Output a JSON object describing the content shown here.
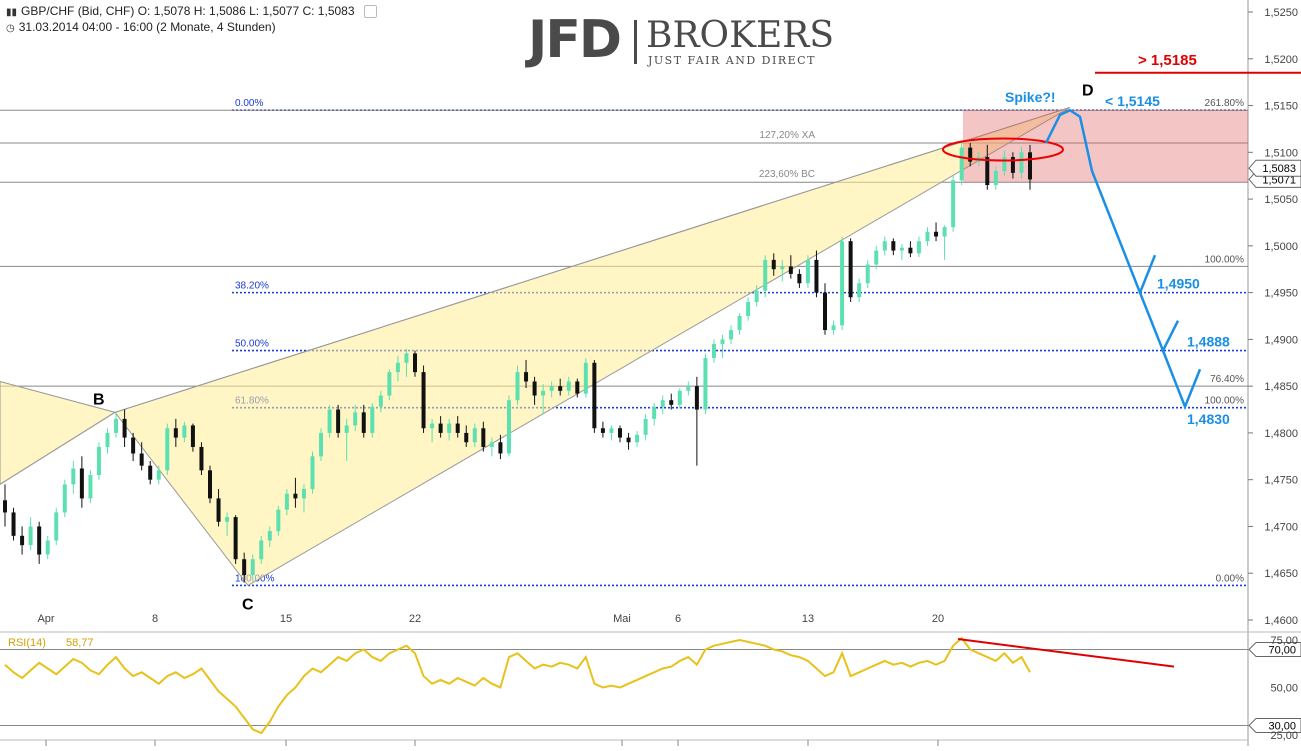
{
  "header": {
    "line1": "GBP/CHF (Bid, CHF)  O: 1,5078  H: 1,5086  L: 1,5077  C: 1,5083",
    "line2": "31.03.2014 04:00 - 16:00 (2 Monate, 4 Stunden)"
  },
  "logo": {
    "main": "JFD",
    "brand": "BROKERS",
    "tagline": "JUST FAIR AND DIRECT"
  },
  "chart_data": [
    {
      "type": "candlestick",
      "title": "GBP/CHF",
      "ylim": [
        1.46,
        1.525
      ],
      "y_ticks": [
        "1,5250",
        "1,5200",
        "1,5150",
        "1,5100",
        "1,5050",
        "1,5000",
        "1,4950",
        "1,4900",
        "1,4850",
        "1,4800",
        "1,4750",
        "1,4700",
        "1,4650",
        "1,4600"
      ],
      "y_tick_values": [
        1.525,
        1.52,
        1.515,
        1.51,
        1.505,
        1.5,
        1.495,
        1.49,
        1.485,
        1.48,
        1.475,
        1.47,
        1.465,
        1.46
      ],
      "x_ticks": [
        "Apr",
        "8",
        "15",
        "22",
        "Mai",
        "6",
        "13",
        "20"
      ],
      "current_price": "1,5083",
      "price_label_2": "1,5071",
      "colors": {
        "up": "#5ce0b0",
        "down": "#111111",
        "fib": "#1a3bd4",
        "target": "#1a8fe6",
        "alert": "#e00000"
      },
      "pattern_points": {
        "B": "B",
        "C": "C",
        "D": "D"
      },
      "fib_left": [
        {
          "label": "0.00%",
          "y": 1.5145
        },
        {
          "label": "38.20%",
          "y": 1.495
        },
        {
          "label": "50.00%",
          "y": 1.4888
        },
        {
          "label": "61.80%",
          "y": 1.4827
        },
        {
          "label": "100.00%",
          "y": 1.4637
        }
      ],
      "fib_right": [
        {
          "label": "261.80%",
          "y": 1.5145
        },
        {
          "label": "100.00%",
          "y": 1.4978
        },
        {
          "label": "76.40%",
          "y": 1.485
        },
        {
          "label": "100.00%",
          "y": 1.4827
        },
        {
          "label": "0.00%",
          "y": 1.4637
        }
      ],
      "grey_levels": [
        {
          "label": "127,20% XA",
          "y": 1.511
        },
        {
          "label": "223,60% BC",
          "y": 1.5068
        },
        {
          "label": "",
          "y": 1.4978
        },
        {
          "label": "",
          "y": 1.485
        }
      ],
      "annotations": {
        "spike": "Spike?!",
        "upper_target": "> 1,5185",
        "d_level": "< 1,5145",
        "t1": "1,4950",
        "t2": "1,4888",
        "t3": "1,4830"
      },
      "candles": [
        [
          1.4728,
          1.4745,
          1.47,
          1.4715
        ],
        [
          1.4715,
          1.472,
          1.4685,
          1.469
        ],
        [
          1.469,
          1.47,
          1.467,
          1.468
        ],
        [
          1.468,
          1.471,
          1.4675,
          1.47
        ],
        [
          1.47,
          1.4705,
          1.466,
          1.467
        ],
        [
          1.467,
          1.469,
          1.4665,
          1.4685
        ],
        [
          1.4685,
          1.472,
          1.468,
          1.4715
        ],
        [
          1.4715,
          1.475,
          1.471,
          1.4745
        ],
        [
          1.4745,
          1.477,
          1.4735,
          1.4762
        ],
        [
          1.4762,
          1.4775,
          1.472,
          1.473
        ],
        [
          1.473,
          1.476,
          1.4725,
          1.4755
        ],
        [
          1.4755,
          1.479,
          1.475,
          1.4785
        ],
        [
          1.4785,
          1.4805,
          1.4778,
          1.48
        ],
        [
          1.48,
          1.4822,
          1.4795,
          1.4815
        ],
        [
          1.4815,
          1.4825,
          1.4785,
          1.4795
        ],
        [
          1.4795,
          1.48,
          1.477,
          1.4778
        ],
        [
          1.4778,
          1.479,
          1.476,
          1.4765
        ],
        [
          1.4765,
          1.477,
          1.4745,
          1.475
        ],
        [
          1.475,
          1.4765,
          1.4745,
          1.476
        ],
        [
          1.476,
          1.481,
          1.4755,
          1.4805
        ],
        [
          1.4805,
          1.4815,
          1.4785,
          1.4795
        ],
        [
          1.4795,
          1.4812,
          1.479,
          1.4808
        ],
        [
          1.4808,
          1.481,
          1.478,
          1.4785
        ],
        [
          1.4785,
          1.479,
          1.4755,
          1.476
        ],
        [
          1.476,
          1.4765,
          1.4725,
          1.473
        ],
        [
          1.473,
          1.474,
          1.47,
          1.4705
        ],
        [
          1.4705,
          1.4715,
          1.469,
          1.471
        ],
        [
          1.471,
          1.4712,
          1.466,
          1.4665
        ],
        [
          1.4665,
          1.4672,
          1.464,
          1.4648
        ],
        [
          1.4648,
          1.467,
          1.4642,
          1.4665
        ],
        [
          1.4665,
          1.469,
          1.466,
          1.4685
        ],
        [
          1.4685,
          1.47,
          1.4678,
          1.4695
        ],
        [
          1.4695,
          1.4722,
          1.469,
          1.4718
        ],
        [
          1.4718,
          1.474,
          1.4712,
          1.4735
        ],
        [
          1.4735,
          1.4752,
          1.472,
          1.473
        ],
        [
          1.473,
          1.4745,
          1.4715,
          1.474
        ],
        [
          1.474,
          1.478,
          1.4735,
          1.4775
        ],
        [
          1.4775,
          1.4805,
          1.477,
          1.48
        ],
        [
          1.48,
          1.483,
          1.4795,
          1.4825
        ],
        [
          1.4825,
          1.483,
          1.4795,
          1.48
        ],
        [
          1.48,
          1.4815,
          1.477,
          1.4808
        ],
        [
          1.4808,
          1.483,
          1.4802,
          1.4822
        ],
        [
          1.4822,
          1.483,
          1.4795,
          1.48
        ],
        [
          1.48,
          1.4832,
          1.4795,
          1.4828
        ],
        [
          1.4828,
          1.4845,
          1.4822,
          1.484
        ],
        [
          1.484,
          1.4868,
          1.4835,
          1.4865
        ],
        [
          1.4865,
          1.4882,
          1.4855,
          1.4875
        ],
        [
          1.4875,
          1.489,
          1.486,
          1.4885
        ],
        [
          1.4885,
          1.4888,
          1.486,
          1.4865
        ],
        [
          1.4865,
          1.4872,
          1.48,
          1.4805
        ],
        [
          1.4805,
          1.4815,
          1.479,
          1.481
        ],
        [
          1.481,
          1.4818,
          1.4795,
          1.48
        ],
        [
          1.48,
          1.4815,
          1.4792,
          1.481
        ],
        [
          1.481,
          1.4818,
          1.4795,
          1.48
        ],
        [
          1.48,
          1.4808,
          1.4785,
          1.479
        ],
        [
          1.479,
          1.481,
          1.4785,
          1.4805
        ],
        [
          1.4805,
          1.4812,
          1.478,
          1.4785
        ],
        [
          1.4785,
          1.4795,
          1.4775,
          1.479
        ],
        [
          1.479,
          1.4798,
          1.4772,
          1.4778
        ],
        [
          1.4778,
          1.484,
          1.4775,
          1.4835
        ],
        [
          1.4835,
          1.4872,
          1.483,
          1.4865
        ],
        [
          1.4865,
          1.4878,
          1.4848,
          1.4855
        ],
        [
          1.4855,
          1.486,
          1.483,
          1.484
        ],
        [
          1.484,
          1.4852,
          1.482,
          1.4845
        ],
        [
          1.4845,
          1.4855,
          1.4838,
          1.485
        ],
        [
          1.485,
          1.4858,
          1.484,
          1.4845
        ],
        [
          1.4845,
          1.486,
          1.484,
          1.4855
        ],
        [
          1.4855,
          1.4858,
          1.4838,
          1.4842
        ],
        [
          1.4842,
          1.488,
          1.4838,
          1.4875
        ],
        [
          1.4875,
          1.4878,
          1.48,
          1.4805
        ],
        [
          1.4805,
          1.4812,
          1.4795,
          1.48
        ],
        [
          1.48,
          1.4808,
          1.4792,
          1.4805
        ],
        [
          1.4805,
          1.4808,
          1.479,
          1.4795
        ],
        [
          1.4795,
          1.48,
          1.4782,
          1.479
        ],
        [
          1.479,
          1.4802,
          1.4785,
          1.4798
        ],
        [
          1.4798,
          1.482,
          1.4792,
          1.4815
        ],
        [
          1.4815,
          1.4832,
          1.4808,
          1.4828
        ],
        [
          1.4828,
          1.484,
          1.482,
          1.4835
        ],
        [
          1.4835,
          1.4842,
          1.4825,
          1.483
        ],
        [
          1.483,
          1.4848,
          1.4826,
          1.4845
        ],
        [
          1.4845,
          1.4855,
          1.484,
          1.485
        ],
        [
          1.485,
          1.486,
          1.4765,
          1.4825
        ],
        [
          1.4825,
          1.4885,
          1.482,
          1.488
        ],
        [
          1.488,
          1.49,
          1.4875,
          1.4895
        ],
        [
          1.4895,
          1.4905,
          1.488,
          1.49
        ],
        [
          1.49,
          1.4915,
          1.4895,
          1.491
        ],
        [
          1.491,
          1.4928,
          1.4905,
          1.4925
        ],
        [
          1.4925,
          1.4945,
          1.492,
          1.494
        ],
        [
          1.494,
          1.4958,
          1.4935,
          1.4952
        ],
        [
          1.4952,
          1.499,
          1.4945,
          1.4985
        ],
        [
          1.4985,
          1.4992,
          1.4968,
          1.4975
        ],
        [
          1.4975,
          1.4985,
          1.4962,
          1.4978
        ],
        [
          1.4978,
          1.499,
          1.4965,
          1.497
        ],
        [
          1.497,
          1.4975,
          1.4955,
          1.496
        ],
        [
          1.496,
          1.499,
          1.4955,
          1.4985
        ],
        [
          1.4985,
          1.4995,
          1.4945,
          1.495
        ],
        [
          1.495,
          1.496,
          1.4905,
          1.491
        ],
        [
          1.491,
          1.492,
          1.4905,
          1.4915
        ],
        [
          1.4915,
          1.501,
          1.491,
          1.5005
        ],
        [
          1.5005,
          1.5008,
          1.494,
          1.4945
        ],
        [
          1.4945,
          1.4965,
          1.494,
          1.496
        ],
        [
          1.496,
          1.4985,
          1.4955,
          1.498
        ],
        [
          1.498,
          1.5,
          1.4975,
          1.4995
        ],
        [
          1.4995,
          1.501,
          1.499,
          1.5005
        ],
        [
          1.5005,
          1.5008,
          1.499,
          1.4995
        ],
        [
          1.4995,
          1.5002,
          1.4985,
          1.4998
        ],
        [
          1.4998,
          1.5005,
          1.4988,
          1.4992
        ],
        [
          1.4992,
          1.501,
          1.4988,
          1.5005
        ],
        [
          1.5005,
          1.502,
          1.5,
          1.5015
        ],
        [
          1.5015,
          1.5025,
          1.5005,
          1.501
        ],
        [
          1.501,
          1.5022,
          1.4985,
          1.502
        ],
        [
          1.502,
          1.5075,
          1.5015,
          1.507
        ],
        [
          1.507,
          1.5112,
          1.5065,
          1.5105
        ],
        [
          1.5105,
          1.511,
          1.5085,
          1.509
        ],
        [
          1.509,
          1.51,
          1.5085,
          1.5095
        ],
        [
          1.5095,
          1.5108,
          1.506,
          1.5065
        ],
        [
          1.5065,
          1.5085,
          1.506,
          1.508
        ],
        [
          1.508,
          1.5102,
          1.5075,
          1.5095
        ],
        [
          1.5095,
          1.51,
          1.5072,
          1.5078
        ],
        [
          1.5078,
          1.5106,
          1.5072,
          1.51
        ],
        [
          1.51,
          1.5108,
          1.506,
          1.5071
        ]
      ]
    },
    {
      "type": "line",
      "title": "RSI(14)",
      "value_label": "58,77",
      "ylim": [
        25,
        75
      ],
      "y_ticks": [
        "75,00",
        "50,00",
        "25,00"
      ],
      "y_tick_values": [
        75,
        50,
        25
      ],
      "levels": [
        {
          "label": "70,00",
          "y": 70
        },
        {
          "label": "30,00",
          "y": 30
        }
      ],
      "values": [
        62,
        58,
        55,
        59,
        63,
        60,
        57,
        61,
        65,
        63,
        59,
        57,
        62,
        66,
        60,
        56,
        58,
        55,
        52,
        56,
        58,
        55,
        57,
        60,
        54,
        48,
        44,
        40,
        34,
        28,
        26,
        32,
        40,
        46,
        50,
        56,
        60,
        58,
        62,
        66,
        64,
        68,
        70,
        66,
        64,
        68,
        70,
        72,
        68,
        56,
        52,
        54,
        52,
        55,
        53,
        51,
        55,
        52,
        50,
        66,
        68,
        64,
        60,
        62,
        61,
        63,
        62,
        60,
        66,
        52,
        50,
        51,
        50,
        52,
        54,
        56,
        58,
        60,
        61,
        64,
        66,
        62,
        70,
        72,
        73,
        74,
        75,
        74,
        73,
        72,
        70,
        69,
        67,
        66,
        64,
        60,
        56,
        58,
        68,
        56,
        58,
        60,
        62,
        64,
        62,
        63,
        61,
        63,
        64,
        62,
        64,
        72,
        76,
        70,
        68,
        66,
        64,
        68,
        63,
        66,
        58
      ],
      "trendline_color": "#e00000"
    }
  ]
}
